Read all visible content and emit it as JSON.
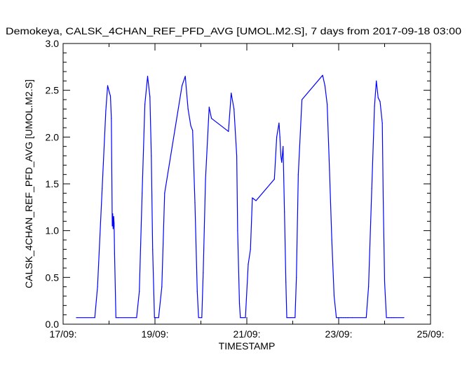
{
  "chart_data": {
    "type": "line",
    "title": "Demokeya, CALSK_4CHAN_REF_PFD_AVG [UMOL.M2.S], 7 days from  2017-09-18 03:00",
    "xlabel": "TIMESTAMP",
    "ylabel": "CALSK_4CHAN_REF_PFD_AVG [UMOL.M2.S]",
    "xlim_days": [
      0,
      8
    ],
    "ylim": [
      0.0,
      3.0
    ],
    "x_ticks": [
      {
        "day": 0,
        "label": "17/09:"
      },
      {
        "day": 2,
        "label": "19/09:"
      },
      {
        "day": 4,
        "label": "21/09:"
      },
      {
        "day": 6,
        "label": "23/09:"
      },
      {
        "day": 8,
        "label": "25/09:"
      }
    ],
    "y_ticks": [
      {
        "value": 0.0,
        "label": "0.0"
      },
      {
        "value": 0.5,
        "label": "0.5"
      },
      {
        "value": 1.0,
        "label": "1.0"
      },
      {
        "value": 1.5,
        "label": "1.5"
      },
      {
        "value": 2.0,
        "label": "2.0"
      },
      {
        "value": 2.5,
        "label": "2.5"
      },
      {
        "value": 3.0,
        "label": "3.0"
      }
    ],
    "series": [
      {
        "name": "CALSK_4CHAN_REF_PFD_AVG",
        "color": "#0000ff",
        "x_days": [
          0.29,
          0.69,
          0.75,
          0.85,
          0.93,
          0.97,
          1.01,
          1.03,
          1.05,
          1.07,
          1.08,
          1.09,
          1.1,
          1.11,
          1.12,
          1.15,
          1.2,
          1.6,
          1.66,
          1.72,
          1.78,
          1.84,
          1.89,
          1.92,
          1.95,
          1.99,
          2.02,
          2.08,
          2.15,
          2.21,
          2.59,
          2.66,
          2.72,
          2.78,
          2.82,
          2.87,
          2.92,
          2.95,
          3.0,
          3.02,
          3.05,
          3.1,
          3.18,
          3.23,
          3.6,
          3.66,
          3.72,
          3.78,
          3.8,
          3.84,
          3.86,
          3.89,
          3.92,
          3.97,
          4.03,
          4.08,
          4.12,
          4.2,
          4.6,
          4.65,
          4.7,
          4.72,
          4.74,
          4.76,
          4.79,
          4.82,
          4.85,
          4.87,
          4.9,
          4.93,
          4.95,
          4.98,
          5.02,
          5.05,
          5.08,
          5.12,
          5.2,
          5.65,
          5.7,
          5.75,
          5.8,
          5.85,
          5.9,
          5.95,
          6.0,
          6.05,
          6.1,
          6.15,
          6.2,
          6.3,
          6.6,
          6.65,
          6.72,
          6.78,
          6.82,
          6.86,
          6.9,
          6.95,
          6.97,
          7.0,
          7.04,
          7.09,
          7.15,
          7.2,
          7.42
        ],
        "values": [
          0.07,
          0.07,
          0.4,
          1.45,
          2.28,
          2.55,
          2.47,
          2.44,
          2.2,
          1.05,
          1.18,
          1.02,
          1.15,
          1.08,
          0.75,
          0.07,
          0.07,
          0.07,
          0.35,
          1.4,
          2.35,
          2.65,
          2.43,
          1.8,
          0.8,
          0.07,
          0.07,
          0.07,
          0.4,
          1.4,
          2.55,
          2.65,
          2.3,
          2.12,
          2.07,
          1.3,
          0.35,
          0.07,
          0.07,
          0.07,
          0.55,
          1.55,
          2.32,
          2.2,
          2.06,
          2.47,
          2.3,
          1.8,
          1.0,
          0.22,
          0.07,
          0.07,
          0.07,
          0.07,
          0.64,
          0.8,
          1.35,
          1.32,
          1.55,
          2.0,
          2.15,
          2.0,
          1.8,
          1.73,
          1.9,
          1.2,
          0.45,
          0.07,
          0.07,
          0.07,
          0.07,
          0.07,
          0.07,
          0.07,
          0.5,
          1.6,
          2.4,
          2.66,
          2.55,
          2.35,
          1.65,
          0.9,
          0.3,
          0.07,
          0.07,
          0.07,
          0.07,
          0.07,
          0.07,
          0.07,
          0.07,
          0.4,
          1.45,
          2.33,
          2.6,
          2.42,
          2.38,
          2.15,
          1.35,
          0.45,
          0.07,
          0.07,
          0.07,
          0.07,
          0.07
        ]
      }
    ]
  }
}
